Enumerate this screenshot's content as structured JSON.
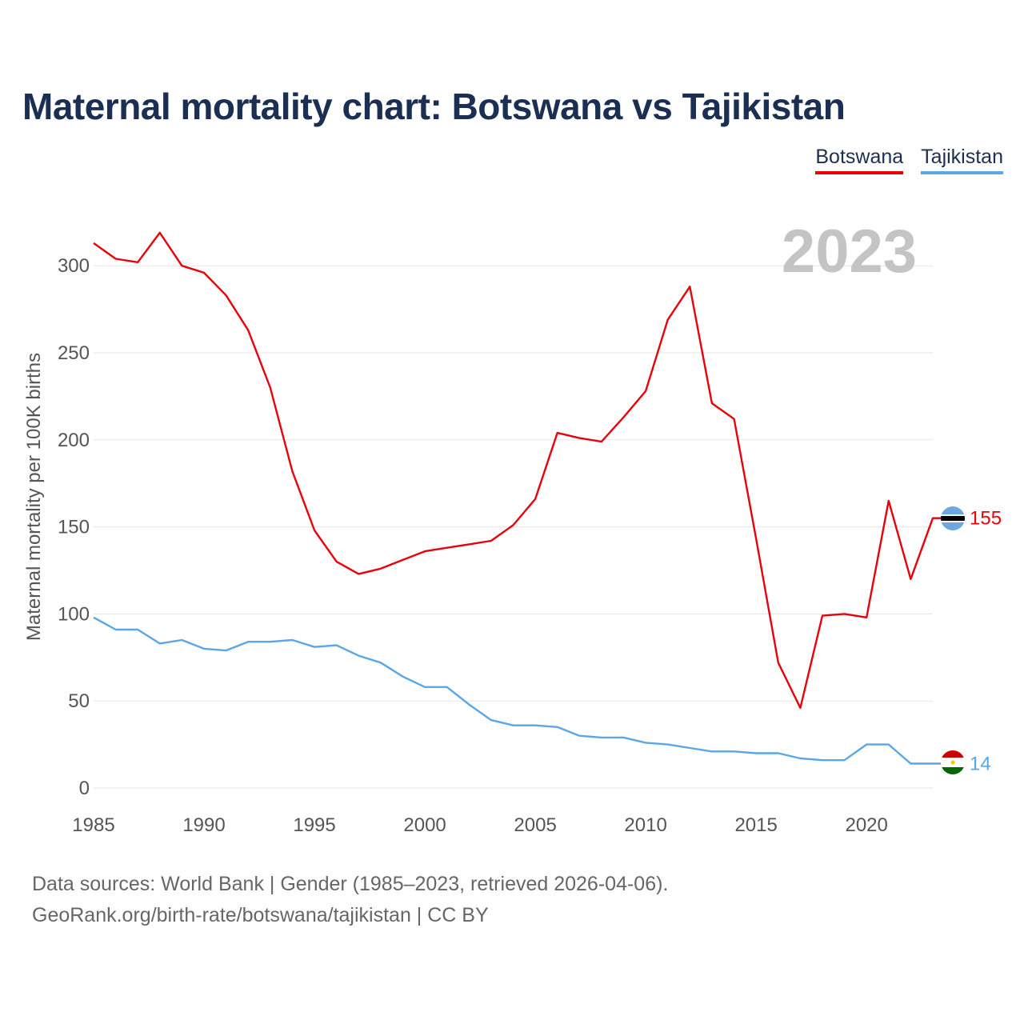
{
  "title": "Maternal mortality chart: Botswana vs Tajikistan",
  "footer": {
    "line1": "Data sources: World Bank | Gender (1985–2023, retrieved 2026-04-06).",
    "line2": "GeoRank.org/birth-rate/botswana/tajikistan | CC BY"
  },
  "colors": {
    "botswana": "#e8000b",
    "tajikistan": "#5aa6e6",
    "title": "#1b2f52"
  },
  "chart_data": {
    "type": "line",
    "title": "Maternal mortality chart: Botswana vs Tajikistan",
    "ylabel": "Maternal mortality per 100K births",
    "xlabel": "",
    "year_watermark": "2023",
    "xlim": [
      1985,
      2023
    ],
    "ylim": [
      0,
      320
    ],
    "xticks": [
      1985,
      1990,
      1995,
      2000,
      2005,
      2010,
      2015,
      2020
    ],
    "yticks": [
      0,
      50,
      100,
      150,
      200,
      250,
      300
    ],
    "grid": true,
    "legend_position": "top-right",
    "x": [
      1985,
      1986,
      1987,
      1988,
      1989,
      1990,
      1991,
      1992,
      1993,
      1994,
      1995,
      1996,
      1997,
      1998,
      1999,
      2000,
      2001,
      2002,
      2003,
      2004,
      2005,
      2006,
      2007,
      2008,
      2009,
      2010,
      2011,
      2012,
      2013,
      2014,
      2015,
      2016,
      2017,
      2018,
      2019,
      2020,
      2021,
      2022,
      2023
    ],
    "series": [
      {
        "name": "Botswana",
        "color": "#e8000b",
        "end_label": "155",
        "values": [
          313,
          304,
          302,
          319,
          300,
          296,
          283,
          263,
          230,
          182,
          148,
          130,
          123,
          126,
          131,
          136,
          138,
          140,
          142,
          151,
          166,
          204,
          201,
          199,
          213,
          228,
          269,
          288,
          221,
          212,
          143,
          72,
          46,
          99,
          100,
          98,
          165,
          120,
          155
        ]
      },
      {
        "name": "Tajikistan",
        "color": "#5aa6e6",
        "end_label": "14",
        "values": [
          98,
          91,
          91,
          83,
          85,
          80,
          79,
          84,
          84,
          85,
          81,
          82,
          76,
          72,
          64,
          58,
          58,
          48,
          39,
          36,
          36,
          35,
          30,
          29,
          29,
          26,
          25,
          23,
          21,
          21,
          20,
          20,
          17,
          16,
          16,
          25,
          25,
          14,
          14
        ]
      }
    ]
  }
}
